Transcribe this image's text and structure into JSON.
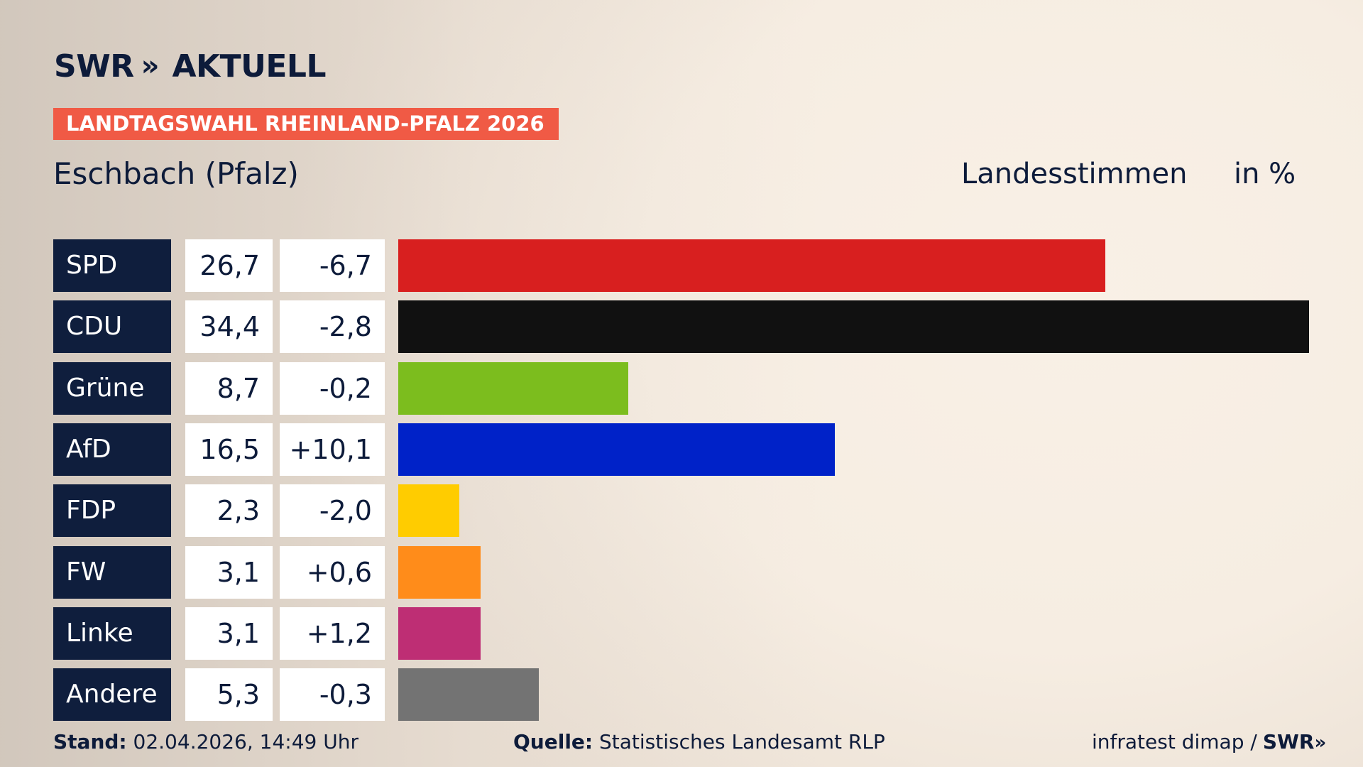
{
  "header": {
    "logo_brand": "SWR",
    "logo_arrows": "»",
    "logo_suffix": "AKTUELL",
    "election_tag": "LANDTAGSWAHL RHEINLAND-PFALZ 2026",
    "location": "Eschbach (Pfalz)",
    "votes_label": "Landesstimmen",
    "unit_label": "in %"
  },
  "chart_data": {
    "type": "bar",
    "orientation": "horizontal",
    "categories": [
      "SPD",
      "CDU",
      "Grüne",
      "AfD",
      "FDP",
      "FW",
      "Linke",
      "Andere"
    ],
    "values": [
      26.7,
      34.4,
      8.7,
      16.5,
      2.3,
      3.1,
      3.1,
      5.3
    ],
    "value_labels": [
      "26,7",
      "34,4",
      "8,7",
      "16,5",
      "2,3",
      "3,1",
      "3,1",
      "5,3"
    ],
    "diff_labels": [
      "-6,7",
      "-2,8",
      "-0,2",
      "+10,1",
      "-2,0",
      "+0,6",
      "+1,2",
      "-0,3"
    ],
    "diffs": [
      -6.7,
      -2.8,
      -0.2,
      10.1,
      -2.0,
      0.6,
      1.2,
      -0.3
    ],
    "colors": [
      "#d81f1f",
      "#111111",
      "#7cbd1e",
      "#0022c8",
      "#ffcc00",
      "#ff8c1a",
      "#be2e74",
      "#737373"
    ],
    "xlim": [
      0,
      34.4
    ],
    "grid": false,
    "legend": "none"
  },
  "footer": {
    "stand_label": "Stand:",
    "stand_value": "02.04.2026, 14:49 Uhr",
    "source_label": "Quelle:",
    "source_value": "Statistisches Landesamt RLP",
    "credit": "infratest dimap /",
    "credit_brand": "SWR",
    "credit_arrows": "»"
  }
}
